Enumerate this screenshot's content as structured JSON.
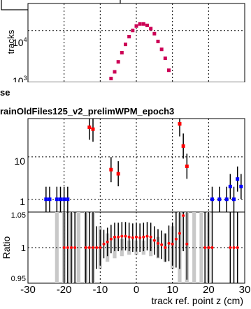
{
  "panel_top": {
    "ylabel": "tracks",
    "y_ticks": [
      {
        "base": "10",
        "exp": "4"
      },
      {
        "base": "10",
        "exp": "3"
      }
    ]
  },
  "header": {
    "line1": "se",
    "line2": "rainOldFiles125_v2_prelimWPM_epoch3"
  },
  "panel_mid": {
    "y_ticks": [
      "10",
      "1"
    ]
  },
  "panel_ratio": {
    "ylabel": "Ratio",
    "y_ticks": [
      "1.05",
      "1",
      "0.95"
    ],
    "x_ticks": [
      "-30",
      "-20",
      "-10",
      "0",
      "10",
      "20",
      "30"
    ],
    "xlabel": "track ref. point z (cm)"
  },
  "colors": {
    "red_series": "#ff0000",
    "blue_series": "#0000ff",
    "magenta_series": "#cc0055",
    "band": "#c8c8c8"
  },
  "chart_data": [
    {
      "type": "scatter",
      "ylabel": "tracks",
      "log_y": true,
      "ylim": [
        700,
        40000
      ],
      "xlim": [
        -30,
        30
      ],
      "grid": true,
      "series": [
        {
          "color": "#cc0055",
          "x": [
            -7,
            -6,
            -5,
            -4,
            -3,
            -2,
            -1,
            0,
            1,
            2,
            3,
            4,
            5,
            6,
            7,
            8,
            9
          ],
          "y": [
            850,
            1200,
            2000,
            3200,
            4900,
            7300,
            10000,
            12600,
            14000,
            14000,
            13000,
            11000,
            8500,
            5700,
            3800,
            2400,
            1300
          ]
        }
      ]
    },
    {
      "type": "scatter",
      "log_y": true,
      "ylim": [
        0.5,
        80
      ],
      "xlim": [
        -30,
        30
      ],
      "grid": true,
      "series": [
        {
          "color": "#ff0000",
          "x": [
            -13,
            -12,
            -7,
            -5,
            12,
            13,
            14
          ],
          "y": [
            50,
            45,
            5,
            4,
            60,
            18,
            6
          ]
        },
        {
          "color": "#0000ff",
          "x": [
            -25,
            -24,
            -22,
            -21,
            -20,
            -19,
            21,
            23,
            25,
            26,
            27,
            28,
            29
          ],
          "y": [
            1,
            1,
            1,
            1,
            1,
            1,
            1,
            1,
            1,
            2,
            1,
            3,
            2
          ]
        }
      ]
    },
    {
      "type": "scatter",
      "ylabel": "Ratio",
      "xlabel": "track ref. point z (cm)",
      "ylim": [
        0.95,
        1.05
      ],
      "xlim": [
        -30,
        30
      ],
      "grid": true,
      "band": {
        "x": [
          -22,
          -20,
          -18,
          -16,
          -14,
          -12,
          -10,
          -8,
          -6,
          -4,
          -2,
          0,
          2,
          4,
          6,
          8,
          10,
          12,
          14,
          16,
          18,
          20
        ],
        "half_width": [
          0.05,
          0.05,
          0.05,
          0.05,
          0.05,
          0.05,
          0.03,
          0.02,
          0.015,
          0.012,
          0.01,
          0.01,
          0.01,
          0.012,
          0.015,
          0.02,
          0.03,
          0.05,
          0.05,
          0.05,
          0.05,
          0.05
        ]
      },
      "series": [
        {
          "color": "#ff0000",
          "x": [
            -20,
            -19,
            -18,
            -17,
            -14,
            -13,
            -12,
            -11,
            -10,
            -9,
            -8,
            -7,
            -6,
            -5,
            -4,
            -3,
            -2,
            -1,
            0,
            1,
            2,
            3,
            4,
            5,
            6,
            7,
            8,
            9,
            10,
            11,
            12,
            13,
            14,
            19,
            20,
            21,
            26,
            27,
            28
          ],
          "y": [
            1.0,
            1.0,
            1.0,
            1.0,
            1.0,
            1.0,
            1.0,
            1.0,
            1.0,
            1.005,
            1.008,
            1.012,
            1.015,
            1.015,
            1.016,
            1.016,
            1.015,
            1.014,
            1.015,
            1.014,
            1.015,
            1.016,
            1.015,
            1.01,
            1.006,
            1.004,
            1.0,
            1.006,
            1.005,
            1.012,
            1.02,
            1.045,
            1.005,
            1.0,
            1.0,
            1.0,
            1.0,
            1.0,
            1.0
          ],
          "err": [
            0.05,
            0.05,
            0.05,
            0.05,
            0.05,
            0.05,
            0.05,
            0.03,
            0.025,
            0.02,
            0.02,
            0.02,
            0.02,
            0.02,
            0.02,
            0.02,
            0.02,
            0.02,
            0.02,
            0.02,
            0.02,
            0.02,
            0.02,
            0.02,
            0.02,
            0.02,
            0.02,
            0.025,
            0.03,
            0.04,
            0.05,
            0.05,
            0.05,
            0.05,
            0.05,
            0.05,
            0.05,
            0.05,
            0.05
          ]
        }
      ]
    }
  ]
}
